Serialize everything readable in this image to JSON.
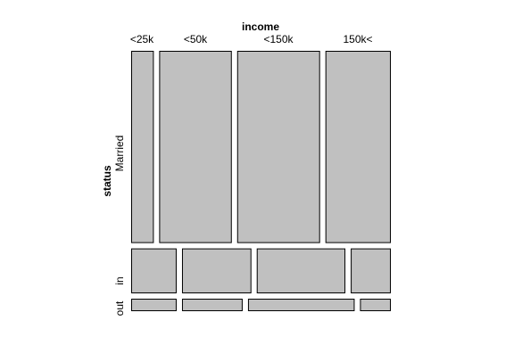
{
  "chart_data": {
    "type": "mosaic",
    "x_variable": "income",
    "y_variable": "status",
    "income_levels": [
      "<25k",
      "<50k",
      "<150k",
      "150k<"
    ],
    "status_levels": [
      "Married",
      "in",
      "out"
    ],
    "status_proportions": [
      0.77,
      0.18,
      0.05
    ],
    "counts_pct": [
      {
        "status": "Married",
        "income": "<25k",
        "proportion_within_status": 0.088
      },
      {
        "status": "Married",
        "income": "<50k",
        "proportion_within_status": 0.282
      },
      {
        "status": "Married",
        "income": "<150k",
        "proportion_within_status": 0.322
      },
      {
        "status": "Married",
        "income": "150k<",
        "proportion_within_status": 0.254
      },
      {
        "status": "in",
        "income": "<25k",
        "proportion_within_status": 0.177
      },
      {
        "status": "in",
        "income": "<50k",
        "proportion_within_status": 0.27
      },
      {
        "status": "in",
        "income": "<150k",
        "proportion_within_status": 0.345
      },
      {
        "status": "in",
        "income": "150k<",
        "proportion_within_status": 0.156
      },
      {
        "status": "out",
        "income": "<25k",
        "proportion_within_status": 0.177
      },
      {
        "status": "out",
        "income": "<50k",
        "proportion_within_status": 0.236
      },
      {
        "status": "out",
        "income": "<150k",
        "proportion_within_status": 0.415
      },
      {
        "status": "out",
        "income": "150k<",
        "proportion_within_status": 0.12
      }
    ],
    "fill_color": "#c0c0c0",
    "stroke_color": "#000000"
  },
  "labels": {
    "top_title": "income",
    "left_title": "status",
    "income_ticks": [
      "<25k",
      "<50k",
      "<150k",
      "150k<"
    ],
    "status_ticks": [
      "Married",
      "in",
      "out"
    ]
  }
}
